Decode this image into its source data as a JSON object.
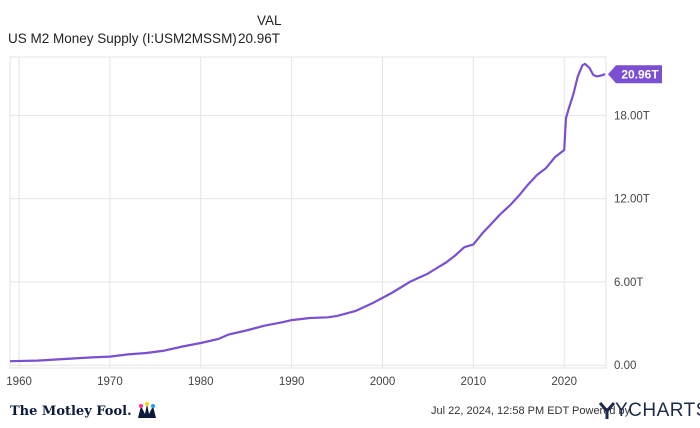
{
  "header": {
    "series_name": "US M2 Money Supply (I:USM2MSSM)",
    "column_label": "VAL",
    "latest_value": "20.96T"
  },
  "footer": {
    "brand_name": "The Motley Fool.",
    "timestamp": "Jul 22, 2024, 12:58 PM EDT Powered by",
    "powered_by": "YCHARTS"
  },
  "colors": {
    "line": "#7b4fd1",
    "grid": "#e4e4e4",
    "axis_text": "#444444",
    "label_bg": "#7b4fd1",
    "brand_accent": "#ff2e8a"
  },
  "chart_data": {
    "type": "line",
    "title": "US M2 Money Supply (I:USM2MSSM)",
    "xlabel": "",
    "ylabel": "",
    "x_ticks": [
      "1960",
      "1970",
      "1980",
      "1990",
      "2000",
      "2010",
      "2020"
    ],
    "y_ticks": [
      "0.00",
      "6.00T",
      "12.00T",
      "18.00T"
    ],
    "xlim": [
      1959,
      2024.6
    ],
    "ylim": [
      -0.2,
      22.2
    ],
    "grid": true,
    "last_value_label": "20.96T",
    "series": [
      {
        "name": "US M2 Money Supply (I:USM2MSSM)",
        "unit": "trillions USD",
        "points": [
          [
            1959,
            0.29
          ],
          [
            1962,
            0.33
          ],
          [
            1965,
            0.45
          ],
          [
            1968,
            0.56
          ],
          [
            1970,
            0.62
          ],
          [
            1972,
            0.78
          ],
          [
            1974,
            0.88
          ],
          [
            1976,
            1.05
          ],
          [
            1978,
            1.35
          ],
          [
            1980,
            1.6
          ],
          [
            1982,
            1.9
          ],
          [
            1983,
            2.2
          ],
          [
            1985,
            2.5
          ],
          [
            1987,
            2.85
          ],
          [
            1989,
            3.1
          ],
          [
            1990,
            3.25
          ],
          [
            1992,
            3.4
          ],
          [
            1994,
            3.45
          ],
          [
            1995,
            3.55
          ],
          [
            1997,
            3.9
          ],
          [
            1999,
            4.5
          ],
          [
            2000,
            4.85
          ],
          [
            2001,
            5.2
          ],
          [
            2002,
            5.6
          ],
          [
            2003,
            6.0
          ],
          [
            2004,
            6.3
          ],
          [
            2005,
            6.6
          ],
          [
            2006,
            7.0
          ],
          [
            2007,
            7.4
          ],
          [
            2008,
            7.9
          ],
          [
            2009,
            8.5
          ],
          [
            2010,
            8.7
          ],
          [
            2011,
            9.5
          ],
          [
            2012,
            10.2
          ],
          [
            2013,
            10.9
          ],
          [
            2014,
            11.5
          ],
          [
            2015,
            12.2
          ],
          [
            2016,
            13.0
          ],
          [
            2017,
            13.7
          ],
          [
            2018,
            14.2
          ],
          [
            2019,
            15.0
          ],
          [
            2020.0,
            15.5
          ],
          [
            2020.2,
            17.8
          ],
          [
            2020.5,
            18.5
          ],
          [
            2021.0,
            19.5
          ],
          [
            2021.5,
            20.8
          ],
          [
            2022.0,
            21.6
          ],
          [
            2022.3,
            21.7
          ],
          [
            2022.8,
            21.4
          ],
          [
            2023.2,
            20.9
          ],
          [
            2023.6,
            20.8
          ],
          [
            2024.0,
            20.85
          ],
          [
            2024.5,
            20.96
          ]
        ]
      }
    ]
  }
}
